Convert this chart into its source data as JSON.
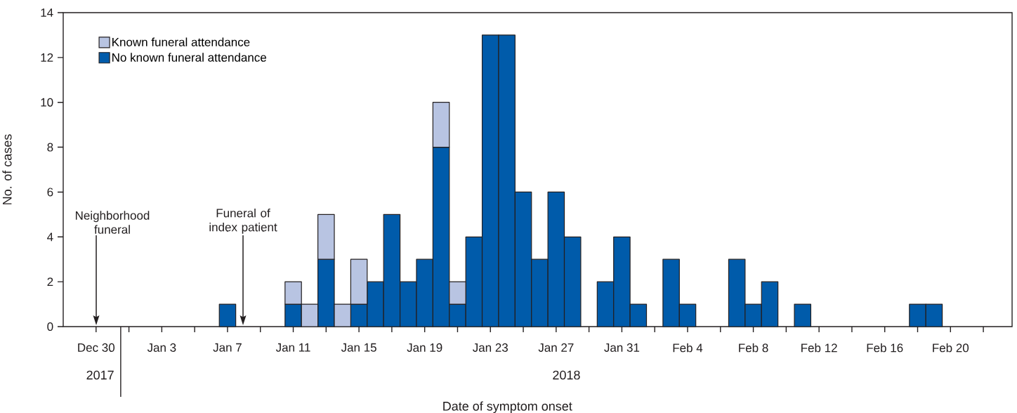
{
  "chart_data": {
    "type": "bar",
    "stacked": true,
    "xlabel": "Date of symptom onset",
    "ylabel": "No. of cases",
    "x": [
      "2018-01-07",
      "2018-01-11",
      "2018-01-12",
      "2018-01-13",
      "2018-01-14",
      "2018-01-15",
      "2018-01-16",
      "2018-01-17",
      "2018-01-18",
      "2018-01-19",
      "2018-01-20",
      "2018-01-21",
      "2018-01-22",
      "2018-01-23",
      "2018-01-24",
      "2018-01-25",
      "2018-01-26",
      "2018-01-27",
      "2018-01-28",
      "2018-01-30",
      "2018-01-31",
      "2018-02-01",
      "2018-02-03",
      "2018-02-04",
      "2018-02-07",
      "2018-02-08",
      "2018-02-09",
      "2018-02-11",
      "2018-02-18",
      "2018-02-19"
    ],
    "series": [
      {
        "name": "No known funeral attendance",
        "color": "#005baa",
        "values": [
          1,
          1,
          null,
          3,
          null,
          1,
          2,
          5,
          2,
          3,
          8,
          1,
          4,
          13,
          13,
          6,
          3,
          6,
          4,
          2,
          4,
          1,
          3,
          1,
          3,
          1,
          2,
          1,
          1,
          1
        ]
      },
      {
        "name": "Known funeral attendance",
        "color": "#b8c4e2",
        "values": [
          null,
          1,
          1,
          2,
          1,
          2,
          null,
          null,
          null,
          null,
          2,
          1,
          null,
          null,
          null,
          null,
          null,
          null,
          null,
          null,
          null,
          null,
          null,
          null,
          null,
          null,
          null,
          null,
          null,
          null
        ]
      }
    ],
    "xlim": [
      "2017-12-28",
      "2018-02-23T18:00"
    ],
    "xticks": [
      {
        "value": "2017-12-30",
        "label": "Dec 30"
      },
      {
        "value": "2018-01-01",
        "label": null
      },
      {
        "value": "2018-01-03",
        "label": "Jan 3"
      },
      {
        "value": "2018-01-05",
        "label": null
      },
      {
        "value": "2018-01-07",
        "label": "Jan 7"
      },
      {
        "value": "2018-01-09",
        "label": null
      },
      {
        "value": "2018-01-11",
        "label": "Jan 11"
      },
      {
        "value": "2018-01-13",
        "label": null
      },
      {
        "value": "2018-01-15",
        "label": "Jan 15"
      },
      {
        "value": "2018-01-17",
        "label": null
      },
      {
        "value": "2018-01-19",
        "label": "Jan 19"
      },
      {
        "value": "2018-01-21",
        "label": null
      },
      {
        "value": "2018-01-23",
        "label": "Jan 23"
      },
      {
        "value": "2018-01-25",
        "label": null
      },
      {
        "value": "2018-01-27",
        "label": "Jan 27"
      },
      {
        "value": "2018-01-29",
        "label": null
      },
      {
        "value": "2018-01-31",
        "label": "Jan 31"
      },
      {
        "value": "2018-02-02",
        "label": null
      },
      {
        "value": "2018-02-04",
        "label": "Feb 4"
      },
      {
        "value": "2018-02-06",
        "label": null
      },
      {
        "value": "2018-02-08",
        "label": "Feb 8"
      },
      {
        "value": "2018-02-10",
        "label": null
      },
      {
        "value": "2018-02-12",
        "label": "Feb 12"
      },
      {
        "value": "2018-02-14",
        "label": null
      },
      {
        "value": "2018-02-16",
        "label": "Feb 16"
      },
      {
        "value": "2018-02-18",
        "label": null
      },
      {
        "value": "2018-02-20",
        "label": "Feb 20"
      },
      {
        "value": "2018-02-22",
        "label": null
      }
    ],
    "ylim": [
      0,
      14
    ],
    "yticks": [
      0,
      2,
      4,
      6,
      8,
      10,
      12,
      14
    ],
    "legend": "top left",
    "grid": false,
    "annotations": [
      "Neighborhood funeral",
      "Funeral of index patient",
      "2017",
      "2018"
    ]
  }
}
